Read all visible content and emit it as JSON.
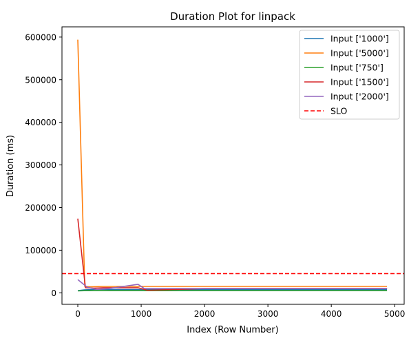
{
  "chart_data": {
    "type": "line",
    "title": "Duration Plot for linpack",
    "xlabel": "Index (Row Number)",
    "ylabel": "Duration (ms)",
    "xlim": [
      -250,
      5150
    ],
    "ylim": [
      -27000,
      624000
    ],
    "x_ticks": [
      0,
      1000,
      2000,
      3000,
      4000,
      5000
    ],
    "x_tick_labels": [
      "0",
      "1000",
      "2000",
      "3000",
      "4000",
      "5000"
    ],
    "y_ticks": [
      0,
      100000,
      200000,
      300000,
      400000,
      500000,
      600000
    ],
    "y_tick_labels": [
      "0",
      "100000",
      "200000",
      "300000",
      "400000",
      "500000",
      "600000"
    ],
    "grid": false,
    "legend_position": "top-right",
    "series": [
      {
        "name": "Input ['1000']",
        "color": "#1f77b4",
        "x": [
          0,
          100,
          300,
          500,
          1000,
          2000,
          3000,
          4000,
          4880
        ],
        "y": [
          5000,
          7000,
          8000,
          7500,
          7500,
          7500,
          7500,
          7500,
          7500
        ]
      },
      {
        "name": "Input ['5000']",
        "color": "#ff7f0e",
        "x": [
          0,
          110,
          200,
          400,
          1000,
          2000,
          3000,
          4000,
          4880
        ],
        "y": [
          594000,
          15000,
          14000,
          15000,
          15000,
          15000,
          15000,
          15000,
          15000
        ]
      },
      {
        "name": "Input ['750']",
        "color": "#2ca02c",
        "x": [
          0,
          100,
          300,
          600,
          1000,
          2000,
          3000,
          4000,
          4880
        ],
        "y": [
          4500,
          5000,
          5000,
          5000,
          5000,
          5000,
          5000,
          5000,
          5000
        ]
      },
      {
        "name": "Input ['1500']",
        "color": "#d62728",
        "x": [
          0,
          120,
          250,
          400,
          950,
          1100,
          2000,
          3000,
          4000,
          4880
        ],
        "y": [
          174000,
          12000,
          11000,
          12000,
          12000,
          6000,
          10000,
          10000,
          10000,
          10000
        ]
      },
      {
        "name": "Input ['2000']",
        "color": "#9467bd",
        "x": [
          0,
          150,
          300,
          500,
          950,
          1050,
          2000,
          3000,
          4000,
          4880
        ],
        "y": [
          31000,
          13000,
          8000,
          10000,
          20000,
          10000,
          10000,
          10000,
          10000,
          10000
        ]
      }
    ],
    "reference_line": {
      "name": "SLO",
      "color": "#ff0000",
      "style": "dashed",
      "y": 45000
    }
  }
}
